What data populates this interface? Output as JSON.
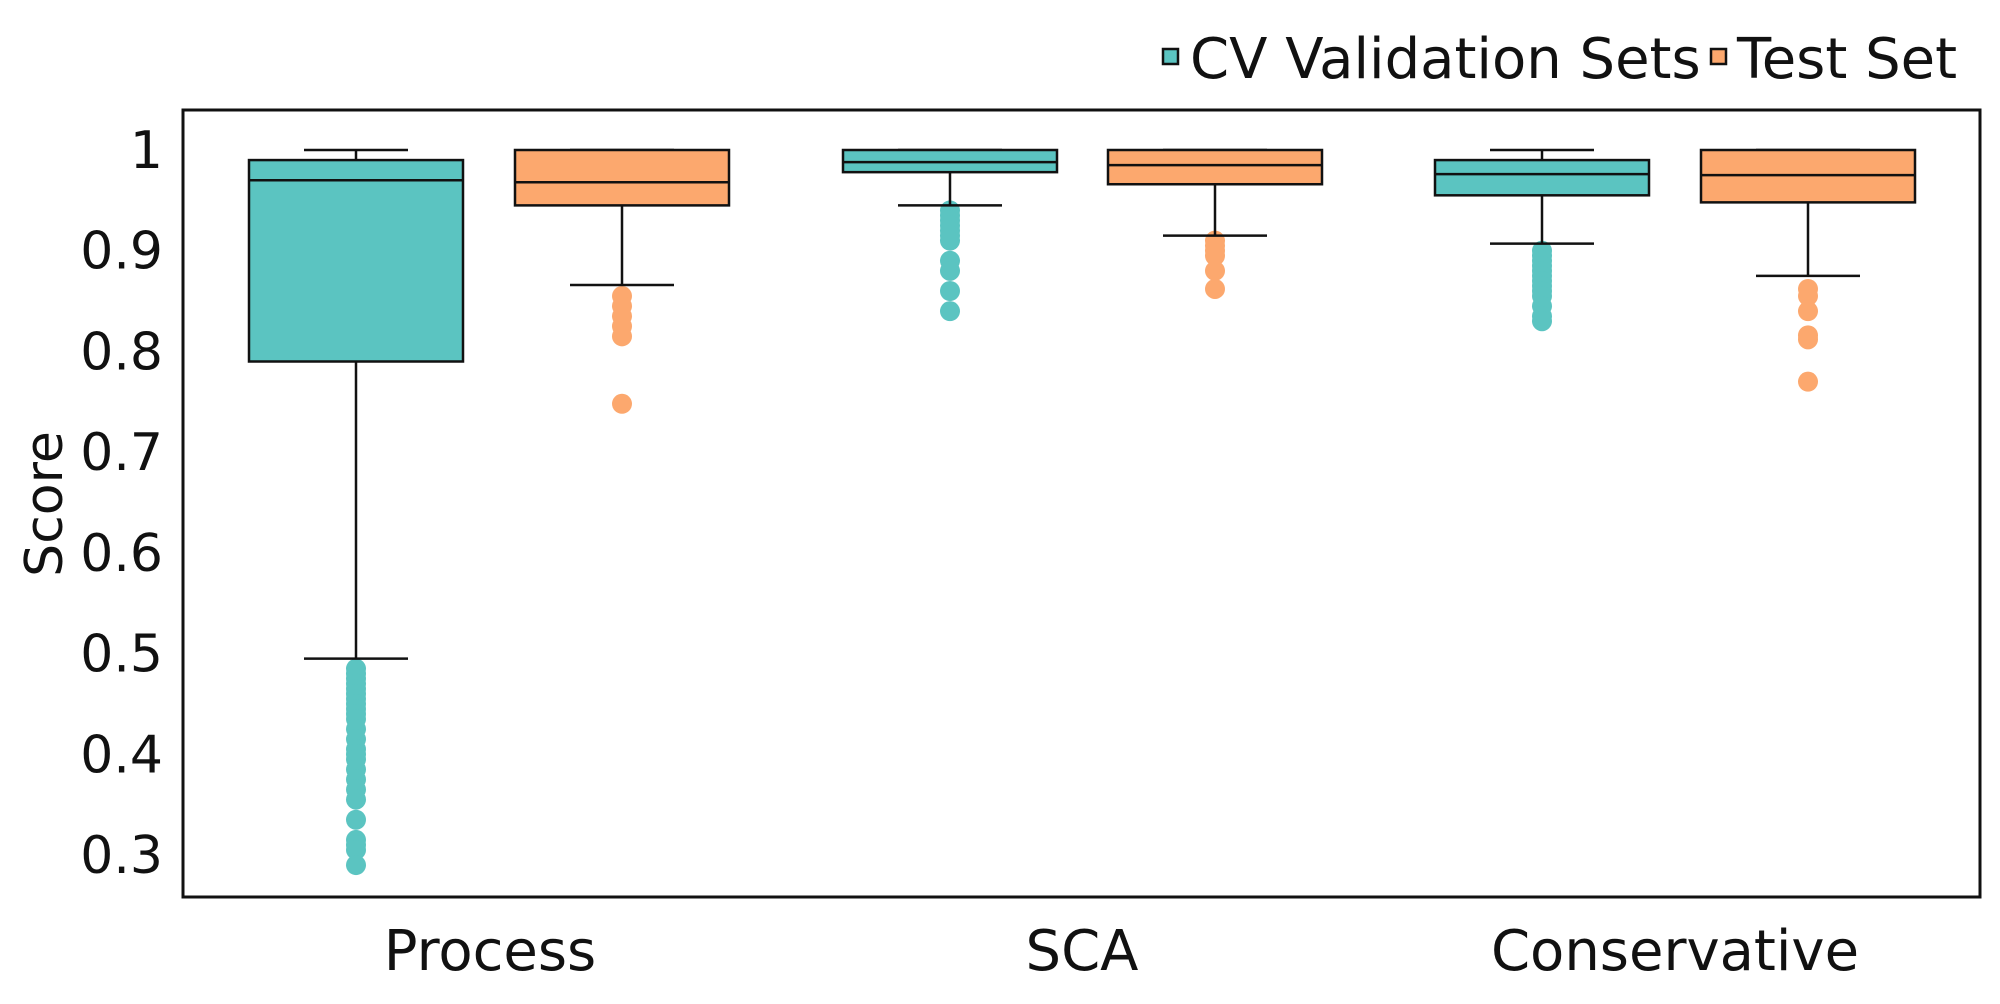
{
  "chart_data": {
    "type": "box",
    "xlabel": "",
    "ylabel": "Score",
    "ylim": [
      0.25,
      1.04
    ],
    "yticks": [
      "1",
      "0.9",
      "0.8",
      "0.7",
      "0.6",
      "0.5",
      "0.4",
      "0.3"
    ],
    "ytick_values": [
      1.0,
      0.9,
      0.8,
      0.7,
      0.6,
      0.5,
      0.4,
      0.3
    ],
    "categories": [
      "Process",
      "SCA",
      "Conservative"
    ],
    "legend_position": "top-right",
    "grid": false,
    "series": [
      {
        "name": "CV Validation Sets",
        "color": "#5BC4C1",
        "boxes": [
          {
            "whisker_low": 0.495,
            "q1": 0.79,
            "median": 0.97,
            "q3": 0.99,
            "whisker_high": 1.0,
            "outliers": [
              0.485,
              0.48,
              0.475,
              0.47,
              0.465,
              0.46,
              0.455,
              0.45,
              0.445,
              0.44,
              0.435,
              0.425,
              0.415,
              0.405,
              0.4,
              0.395,
              0.385,
              0.375,
              0.365,
              0.355,
              0.335,
              0.315,
              0.31,
              0.305,
              0.29
            ]
          },
          {
            "whisker_low": 0.945,
            "q1": 0.978,
            "median": 0.988,
            "q3": 1.0,
            "whisker_high": 1.0,
            "outliers": [
              0.94,
              0.935,
              0.93,
              0.925,
              0.92,
              0.915,
              0.91,
              0.89,
              0.88,
              0.86,
              0.84
            ]
          },
          {
            "whisker_low": 0.907,
            "q1": 0.955,
            "median": 0.976,
            "q3": 0.99,
            "whisker_high": 1.0,
            "outliers": [
              0.9,
              0.895,
              0.89,
              0.885,
              0.88,
              0.875,
              0.87,
              0.865,
              0.86,
              0.855,
              0.845,
              0.835,
              0.83
            ]
          }
        ]
      },
      {
        "name": "Test Set",
        "color": "#FCA86E",
        "boxes": [
          {
            "whisker_low": 0.866,
            "q1": 0.945,
            "median": 0.968,
            "q3": 1.0,
            "whisker_high": 1.0,
            "outliers": [
              0.855,
              0.845,
              0.835,
              0.825,
              0.815,
              0.748
            ]
          },
          {
            "whisker_low": 0.915,
            "q1": 0.966,
            "median": 0.985,
            "q3": 1.0,
            "whisker_high": 1.0,
            "outliers": [
              0.91,
              0.905,
              0.9,
              0.895,
              0.88,
              0.862
            ]
          },
          {
            "whisker_low": 0.875,
            "q1": 0.948,
            "median": 0.975,
            "q3": 1.0,
            "whisker_high": 1.0,
            "outliers": [
              0.862,
              0.855,
              0.84,
              0.816,
              0.812,
              0.77
            ]
          }
        ]
      }
    ]
  }
}
